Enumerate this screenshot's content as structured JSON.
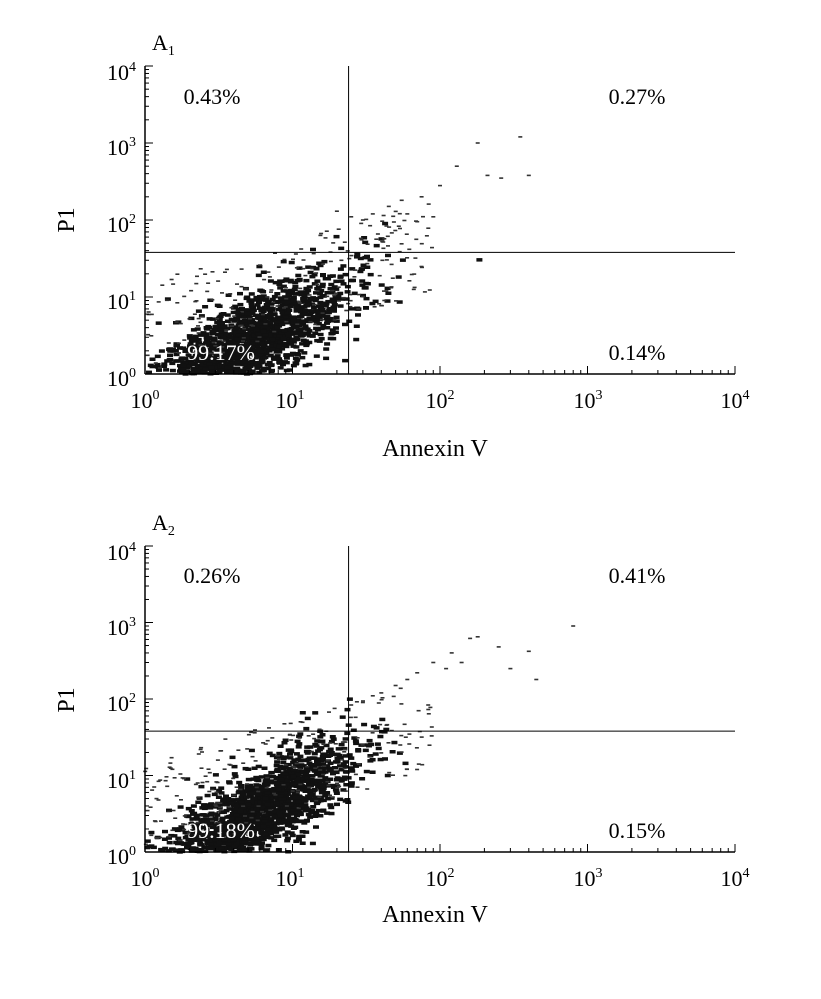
{
  "chart_data": [
    {
      "type": "scatter",
      "panel_label": "A",
      "panel_label_sub": "1",
      "xlabel": "Annexin V",
      "ylabel": "P1",
      "xscale": "log",
      "yscale": "log",
      "xlim": [
        1,
        10000
      ],
      "ylim": [
        1,
        10000
      ],
      "x_tick_labels": [
        {
          "base": "10",
          "exp": "0"
        },
        {
          "base": "10",
          "exp": "1"
        },
        {
          "base": "10",
          "exp": "2"
        },
        {
          "base": "10",
          "exp": "3"
        },
        {
          "base": "10",
          "exp": "4"
        }
      ],
      "y_tick_labels": [
        {
          "base": "10",
          "exp": "0"
        },
        {
          "base": "10",
          "exp": "1"
        },
        {
          "base": "10",
          "exp": "2"
        },
        {
          "base": "10",
          "exp": "3"
        },
        {
          "base": "10",
          "exp": "4"
        }
      ],
      "gate": {
        "x": 24,
        "y": 38
      },
      "quadrants": {
        "upper_left": "0.43%",
        "upper_right": "0.27%",
        "lower_left": "99.17%",
        "lower_right": "0.14%"
      },
      "population": {
        "center_x": 5,
        "center_y": 2.5,
        "correlation": 0.75
      },
      "outliers": [
        [
          350,
          1200
        ],
        [
          180,
          1000
        ],
        [
          130,
          500
        ],
        [
          210,
          380
        ],
        [
          260,
          350
        ],
        [
          100,
          280
        ],
        [
          75,
          200
        ],
        [
          55,
          180
        ],
        [
          45,
          150
        ],
        [
          35,
          120
        ],
        [
          30,
          100
        ],
        [
          400,
          380
        ],
        [
          20,
          130
        ],
        [
          25,
          110
        ],
        [
          60,
          120
        ],
        [
          70,
          95
        ],
        [
          90,
          110
        ]
      ],
      "seed": 11
    },
    {
      "type": "scatter",
      "panel_label": "A",
      "panel_label_sub": "2",
      "xlabel": "Annexin V",
      "ylabel": "P1",
      "xscale": "log",
      "yscale": "log",
      "xlim": [
        1,
        10000
      ],
      "ylim": [
        1,
        10000
      ],
      "x_tick_labels": [
        {
          "base": "10",
          "exp": "0"
        },
        {
          "base": "10",
          "exp": "1"
        },
        {
          "base": "10",
          "exp": "2"
        },
        {
          "base": "10",
          "exp": "3"
        },
        {
          "base": "10",
          "exp": "4"
        }
      ],
      "y_tick_labels": [
        {
          "base": "10",
          "exp": "0"
        },
        {
          "base": "10",
          "exp": "1"
        },
        {
          "base": "10",
          "exp": "2"
        },
        {
          "base": "10",
          "exp": "3"
        },
        {
          "base": "10",
          "exp": "4"
        }
      ],
      "gate": {
        "x": 24,
        "y": 38
      },
      "quadrants": {
        "upper_left": "0.26%",
        "upper_right": "0.41%",
        "lower_left": "99.18%",
        "lower_right": "0.15%"
      },
      "population": {
        "center_x": 5.5,
        "center_y": 3.0,
        "correlation": 0.78
      },
      "outliers": [
        [
          800,
          900
        ],
        [
          180,
          650
        ],
        [
          160,
          620
        ],
        [
          250,
          480
        ],
        [
          400,
          420
        ],
        [
          450,
          180
        ],
        [
          120,
          400
        ],
        [
          90,
          300
        ],
        [
          70,
          220
        ],
        [
          60,
          180
        ],
        [
          50,
          150
        ],
        [
          40,
          120
        ],
        [
          35,
          110
        ],
        [
          30,
          90
        ],
        [
          110,
          250
        ],
        [
          140,
          300
        ],
        [
          300,
          250
        ]
      ],
      "seed": 23
    }
  ]
}
